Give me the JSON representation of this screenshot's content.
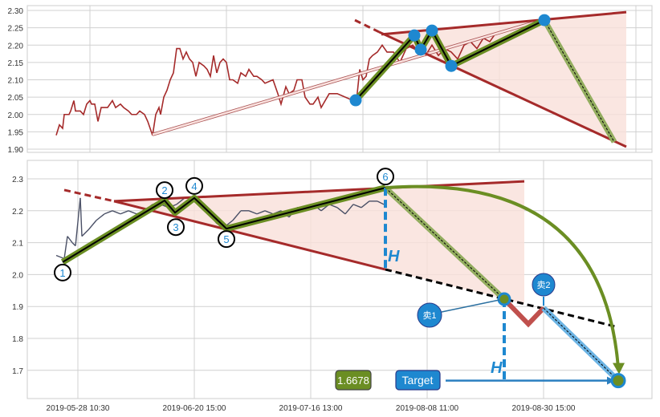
{
  "chart_data": [
    {
      "type": "line",
      "panel": "top",
      "ylim": [
        1.88,
        2.31
      ],
      "y_ticks": [
        "1.90",
        "1.95",
        "2.00",
        "2.05",
        "2.10",
        "2.15",
        "2.20",
        "2.25",
        "2.30"
      ],
      "grid": true,
      "line_color": "#a52a2a",
      "series": [
        {
          "values": [
            [
              18,
              1.94
            ],
            [
              20,
              1.97
            ],
            [
              22,
              1.96
            ],
            [
              23,
              2.0
            ],
            [
              26,
              2.0
            ],
            [
              27,
              2.01
            ],
            [
              29,
              2.04
            ],
            [
              30,
              2.01
            ],
            [
              33,
              2.01
            ],
            [
              35,
              2.0
            ],
            [
              37,
              2.03
            ],
            [
              39,
              2.04
            ],
            [
              40,
              2.03
            ],
            [
              42,
              2.03
            ],
            [
              44,
              1.98
            ],
            [
              46,
              2.02
            ],
            [
              48,
              2.02
            ],
            [
              50,
              2.02
            ],
            [
              53,
              2.04
            ],
            [
              55,
              2.02
            ],
            [
              58,
              2.03
            ],
            [
              60,
              2.02
            ],
            [
              63,
              2.01
            ],
            [
              65,
              2.0
            ],
            [
              68,
              2.0
            ],
            [
              70,
              2.01
            ],
            [
              73,
              2.0
            ],
            [
              75,
              1.98
            ],
            [
              78,
              1.94
            ],
            [
              80,
              2.0
            ],
            [
              82,
              2.02
            ],
            [
              83,
              2.0
            ],
            [
              85,
              2.05
            ],
            [
              87,
              2.07
            ],
            [
              89,
              2.1
            ],
            [
              91,
              2.12
            ],
            [
              93,
              2.19
            ],
            [
              95,
              2.19
            ],
            [
              97,
              2.16
            ],
            [
              99,
              2.18
            ],
            [
              101,
              2.16
            ],
            [
              103,
              2.15
            ],
            [
              105,
              2.11
            ],
            [
              107,
              2.15
            ],
            [
              110,
              2.14
            ],
            [
              112,
              2.13
            ],
            [
              114,
              2.11
            ],
            [
              116,
              2.17
            ],
            [
              118,
              2.12
            ],
            [
              120,
              2.15
            ],
            [
              122,
              2.16
            ],
            [
              124,
              2.15
            ],
            [
              126,
              2.1
            ],
            [
              128,
              2.1
            ],
            [
              131,
              2.09
            ],
            [
              133,
              2.12
            ],
            [
              136,
              2.11
            ],
            [
              138,
              2.13
            ],
            [
              141,
              2.11
            ],
            [
              143,
              2.11
            ],
            [
              146,
              2.1
            ],
            [
              148,
              2.09
            ],
            [
              153,
              2.1
            ],
            [
              156,
              2.06
            ],
            [
              158,
              2.03
            ],
            [
              161,
              2.08
            ],
            [
              163,
              2.06
            ],
            [
              166,
              2.07
            ],
            [
              168,
              2.1
            ],
            [
              171,
              2.1
            ],
            [
              173,
              2.05
            ],
            [
              176,
              2.03
            ],
            [
              178,
              2.03
            ],
            [
              181,
              2.05
            ],
            [
              183,
              2.02
            ],
            [
              188,
              2.06
            ],
            [
              193,
              2.06
            ],
            [
              198,
              2.05
            ],
            [
              203,
              2.04
            ],
            [
              205,
              2.04
            ],
            [
              207,
              2.13
            ],
            [
              209,
              2.1
            ],
            [
              211,
              2.11
            ],
            [
              213,
              2.16
            ],
            [
              215,
              2.17
            ],
            [
              218,
              2.18
            ],
            [
              221,
              2.2
            ],
            [
              224,
              2.18
            ],
            [
              228,
              2.18
            ],
            [
              232,
              2.15
            ],
            [
              236,
              2.19
            ],
            [
              240,
              2.2
            ],
            [
              244,
              2.18
            ],
            [
              248,
              2.17
            ],
            [
              252,
              2.2
            ],
            [
              256,
              2.17
            ],
            [
              260,
              2.19
            ],
            [
              264,
              2.18
            ],
            [
              268,
              2.16
            ],
            [
              272,
              2.2
            ],
            [
              276,
              2.21
            ],
            [
              280,
              2.19
            ],
            [
              284,
              2.22
            ],
            [
              288,
              2.21
            ],
            [
              291,
              2.23
            ]
          ]
        }
      ],
      "pattern_points": [
        [
          204.5,
          2.041
        ],
        [
          241,
          2.228
        ],
        [
          245,
          2.187
        ],
        [
          252,
          2.242
        ],
        [
          264,
          2.14
        ],
        [
          322,
          2.272
        ]
      ],
      "projection_end": [
        365.5,
        1.921
      ],
      "upper_trendline": [
        [
          220.5,
          2.231
        ],
        [
          373,
          2.295
        ]
      ],
      "lower_trendline_dashed": [
        [
          204,
          2.272
        ],
        [
          219,
          2.238
        ]
      ],
      "lower_trendline": [
        [
          219,
          2.238
        ],
        [
          373,
          1.907
        ]
      ],
      "trend_arrow": [
        [
          78,
          1.942
        ],
        [
          320.5,
          2.272
        ]
      ]
    },
    {
      "type": "line",
      "panel": "bottom",
      "ylim": [
        1.6,
        2.36
      ],
      "y_ticks": [
        "1.7",
        "1.8",
        "1.9",
        "2.0",
        "2.1",
        "2.2",
        "2.3"
      ],
      "x_ticks": [
        "2019-05-28 10:30",
        "2019-06-20 15:00",
        "2019-07-16 13:00",
        "2019-08-08 11:00",
        "2019-08-30 15:00"
      ],
      "grid": true,
      "line_color": "#4a5066",
      "series": [
        {
          "values": [
            [
              18,
              2.06
            ],
            [
              23,
              2.05
            ],
            [
              25,
              2.12
            ],
            [
              28,
              2.1
            ],
            [
              30,
              2.09
            ],
            [
              33,
              2.24
            ],
            [
              34,
              2.12
            ],
            [
              38,
              2.14
            ],
            [
              43,
              2.17
            ],
            [
              48,
              2.19
            ],
            [
              53,
              2.2
            ],
            [
              58,
              2.19
            ],
            [
              63,
              2.2
            ],
            [
              68,
              2.19
            ],
            [
              73,
              2.2
            ],
            [
              78,
              2.22
            ],
            [
              83,
              2.22
            ],
            [
              88,
              2.21
            ],
            [
              93,
              2.22
            ],
            [
              98,
              2.24
            ],
            [
              103,
              2.24
            ],
            [
              108,
              2.22
            ],
            [
              113,
              2.19
            ],
            [
              118,
              2.16
            ],
            [
              123,
              2.15
            ],
            [
              128,
              2.17
            ],
            [
              133,
              2.2
            ],
            [
              138,
              2.2
            ],
            [
              143,
              2.19
            ],
            [
              148,
              2.2
            ],
            [
              153,
              2.19
            ],
            [
              158,
              2.2
            ],
            [
              163,
              2.18
            ],
            [
              168,
              2.21
            ],
            [
              173,
              2.21
            ],
            [
              178,
              2.22
            ],
            [
              183,
              2.2
            ],
            [
              188,
              2.22
            ],
            [
              193,
              2.21
            ],
            [
              198,
              2.19
            ],
            [
              203,
              2.22
            ],
            [
              208,
              2.21
            ],
            [
              213,
              2.23
            ],
            [
              218,
              2.23
            ],
            [
              222,
              2.22
            ]
          ]
        }
      ],
      "pattern_points": [
        {
          "label": "1",
          "x": 22,
          "y": 2.039
        },
        {
          "label": "2",
          "x": 85.5,
          "y": 2.232
        },
        {
          "label": "3",
          "x": 92,
          "y": 2.194
        },
        {
          "label": "4",
          "x": 104,
          "y": 2.24
        },
        {
          "label": "5",
          "x": 124,
          "y": 2.144
        },
        {
          "label": "6",
          "x": 223,
          "y": 2.272
        }
      ],
      "upper_trendline": [
        [
          54,
          2.23
        ],
        [
          309.5,
          2.292
        ]
      ],
      "lower_trendline_dashed": [
        [
          23,
          2.265
        ],
        [
          54,
          2.23
        ]
      ],
      "lower_trendline": [
        [
          54,
          2.23
        ],
        [
          223,
          2.016
        ]
      ],
      "lower_extension": [
        [
          223,
          2.016
        ],
        [
          368,
          1.835
        ]
      ],
      "sell_points": [
        {
          "label": "卖1",
          "x": 297,
          "y": 1.923
        },
        {
          "label": "卖2",
          "x": 321.5,
          "y": 1.895
        }
      ],
      "pullback_low": [
        312,
        1.845
      ],
      "target": {
        "label": "Target",
        "value": "1.6678",
        "x": 368,
        "y": 1.6678
      },
      "height_label": "H",
      "colors": {
        "pattern": "#6b8e23",
        "trend": "#a52a2a",
        "fill": "#f9e0da",
        "accent": "#1e88d0",
        "pullback": "#c0504d",
        "path_blue": "#6cb4e4"
      }
    }
  ]
}
